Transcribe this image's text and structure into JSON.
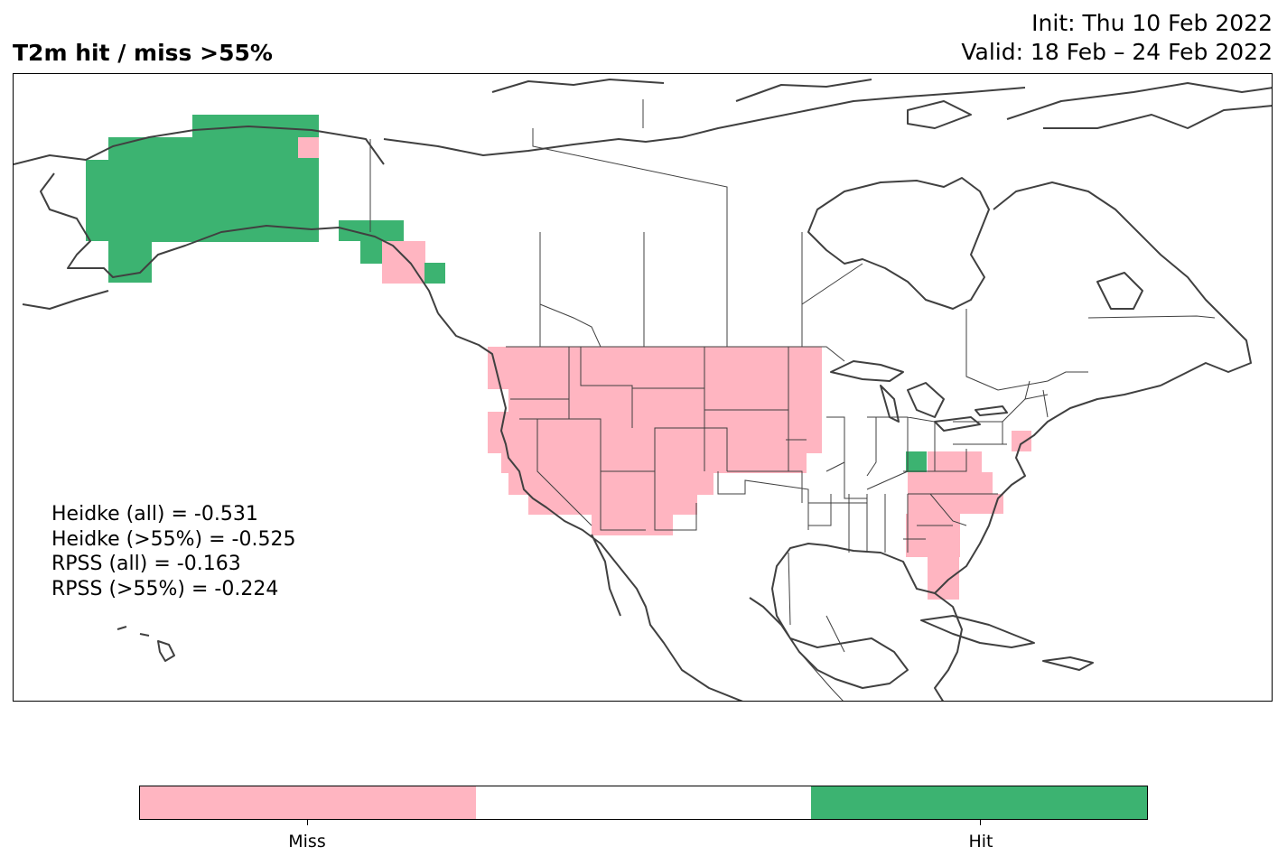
{
  "title": "T2m hit / miss  >55%",
  "init_line": "Init: Thu 10 Feb 2022",
  "valid_line": "Valid: 18 Feb – 24 Feb 2022",
  "scores": [
    "Heidke (all) = -0.531",
    "Heidke (>55%) = -0.525",
    "RPSS (all) = -0.163",
    "RPSS (>55%) = -0.224"
  ],
  "colors": {
    "miss": "#ffb5c1",
    "neutral": "#ffffff",
    "hit": "#3cb371",
    "outline": "#404040"
  },
  "colorbar": {
    "segments": [
      "miss",
      "neutral",
      "hit"
    ],
    "labels": [
      "Miss",
      "Hit"
    ]
  }
}
